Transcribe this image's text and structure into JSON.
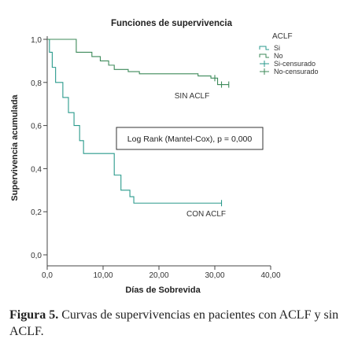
{
  "chart_data": {
    "type": "line",
    "step": true,
    "title": "Funciones de supervivencia",
    "xlabel": "Días de Sobrevida",
    "ylabel": "Supervivencia acumulada",
    "xlim": [
      0,
      40
    ],
    "ylim": [
      0,
      1
    ],
    "x_ticks": [
      "0,0",
      "10,00",
      "20,00",
      "30,00",
      "40,00"
    ],
    "y_ticks": [
      "0,0",
      "0,2",
      "0,4",
      "0,6",
      "0,8",
      "1,0"
    ],
    "grid": false,
    "legend": {
      "title": "ACLF",
      "position": "top-right",
      "entries": [
        "Si",
        "No",
        "Si-censurado",
        "No-censurado"
      ]
    },
    "annotation": "Log Rank (Mantel-Cox), p = 0,000",
    "series": [
      {
        "name": "Si",
        "label": "CON ACLF",
        "color": "#2a9a8c",
        "x": [
          0,
          0.4,
          0.9,
          1.5,
          2.8,
          3.8,
          4.8,
          5.8,
          6.5,
          7.3,
          12.0,
          13.2,
          14.8,
          15.5,
          31.2
        ],
        "y": [
          1.0,
          0.94,
          0.87,
          0.8,
          0.73,
          0.66,
          0.6,
          0.53,
          0.47,
          0.47,
          0.37,
          0.3,
          0.27,
          0.24,
          0.24
        ],
        "censored_x": [
          31.2
        ],
        "censored_y": [
          0.24
        ]
      },
      {
        "name": "No",
        "label": "SIN ACLF",
        "color": "#3d8a5a",
        "x": [
          0,
          5.2,
          8.0,
          9.5,
          11.0,
          12.0,
          14.5,
          16.5,
          25.8,
          27.0,
          29.3,
          30.5,
          32.5
        ],
        "y": [
          1.0,
          0.94,
          0.92,
          0.9,
          0.88,
          0.86,
          0.85,
          0.84,
          0.84,
          0.83,
          0.82,
          0.79,
          0.79
        ],
        "censored_x": [
          30.0,
          31.2,
          32.5
        ],
        "censored_y": [
          0.82,
          0.79,
          0.79
        ]
      }
    ]
  },
  "caption": {
    "label": "Figura 5.",
    "text": "Curvas de supervivencias en pacientes con ACLF y sin ACLF."
  }
}
